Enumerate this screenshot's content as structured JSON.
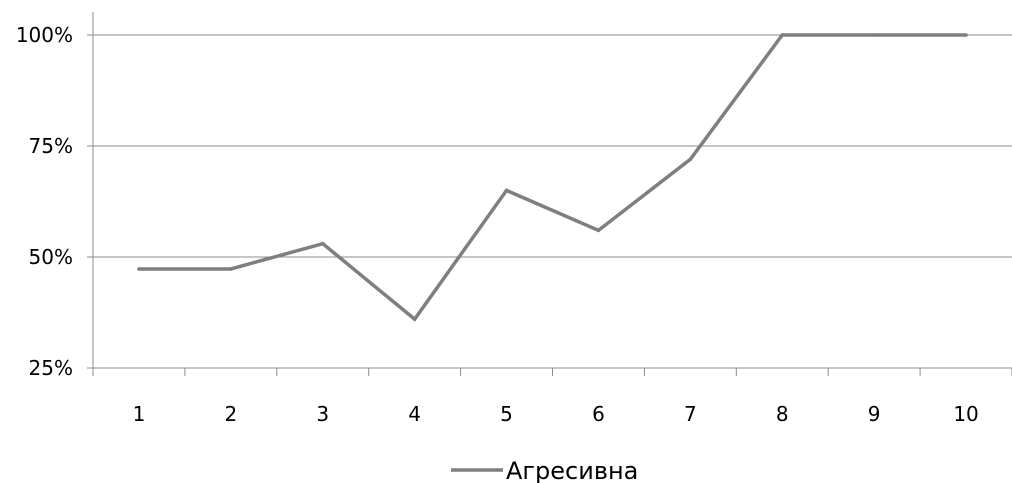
{
  "chart_data": {
    "type": "line",
    "title": "",
    "xlabel": "",
    "ylabel": "",
    "categories": [
      "1",
      "2",
      "3",
      "4",
      "5",
      "6",
      "7",
      "8",
      "9",
      "10"
    ],
    "y_ticks": [
      "25%",
      "50%",
      "75%",
      "100%"
    ],
    "y_tick_values": [
      25,
      50,
      75,
      100
    ],
    "ylim": [
      25,
      100
    ],
    "grid": true,
    "legend_position": "bottom",
    "series": [
      {
        "name": "Агресивна",
        "values": [
          47.3,
          47.3,
          53,
          36,
          65,
          56,
          72,
          100,
          100,
          100
        ],
        "color": "#7f7f7f"
      }
    ]
  }
}
